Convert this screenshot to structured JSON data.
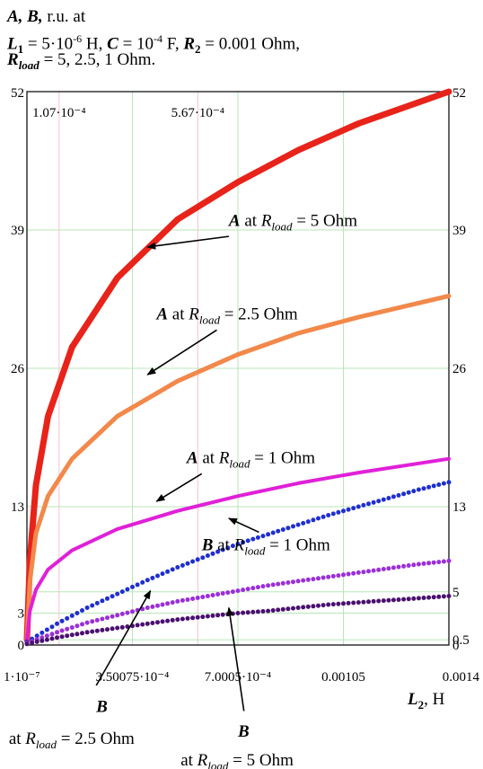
{
  "header": {
    "line1_vars": "A, B,",
    "line1_rest": "r.u.   at",
    "l1_label": "L",
    "l1_sub": "1",
    "l1_value": "= 5·10",
    "l1_exp": "-6",
    "l1_unit": "H,",
    "c_label": "C",
    "c_value": "= 10",
    "c_exp": "-4",
    "c_unit": "F,",
    "r2_label": "R",
    "r2_sub": "2",
    "r2_value": "= 0.001 Ohm,",
    "rload_label": "R",
    "rload_sub": "load",
    "rload_value": "= 5, 2.5, 1 Ohm."
  },
  "chart_data": {
    "type": "line",
    "xlabel_var": "L",
    "xlabel_sub": "2",
    "xlabel_unit": ", H",
    "xlim": [
      1e-07,
      0.0014
    ],
    "ylim": [
      0,
      52
    ],
    "grid": true,
    "x_tick_values": [
      1e-07,
      0.00035,
      0.0007,
      0.00105,
      0.0014
    ],
    "x_tick_labels": [
      "1·10⁻⁷",
      "3.50075·10⁻⁴",
      "7.0005·10⁻⁴",
      "0.00105",
      "0.0014"
    ],
    "top_markers": [
      {
        "value": 0.000107,
        "label": "1.07·10⁻⁴"
      },
      {
        "value": 0.000567,
        "label": "5.67·10⁻⁴"
      }
    ],
    "y_ticks_left": [
      0,
      3,
      13,
      26,
      39,
      52
    ],
    "y_ticks_right": [
      0,
      0.5,
      5,
      13,
      26,
      39,
      52
    ],
    "series": [
      {
        "style": "solid",
        "color": "#e8231a",
        "width": 7,
        "x": [
          1e-07,
          1e-05,
          3e-05,
          7e-05,
          0.00015,
          0.0003,
          0.0005,
          0.0007,
          0.0009,
          0.0011,
          0.0014
        ],
        "y": [
          0.5,
          8,
          15,
          21.5,
          28,
          34.5,
          40,
          43.5,
          46.5,
          49,
          52
        ]
      },
      {
        "style": "solid",
        "color": "#f2884a",
        "width": 5,
        "x": [
          1e-07,
          1e-05,
          3e-05,
          7e-05,
          0.00015,
          0.0003,
          0.0005,
          0.0007,
          0.0009,
          0.0011,
          0.0014
        ],
        "y": [
          0.5,
          6,
          10.5,
          14,
          17.5,
          21.5,
          24.8,
          27.3,
          29.3,
          30.8,
          32.8
        ]
      },
      {
        "style": "solid",
        "color": "#e020d8",
        "width": 4,
        "x": [
          1e-07,
          1e-05,
          3e-05,
          7e-05,
          0.00015,
          0.0003,
          0.0005,
          0.0007,
          0.0009,
          0.0011,
          0.0014
        ],
        "y": [
          0.5,
          3.2,
          5.2,
          7.1,
          8.9,
          10.9,
          12.6,
          14,
          15.2,
          16.2,
          17.5
        ]
      },
      {
        "style": "dotted",
        "color": "#1f2fd0",
        "width": 5,
        "x": [
          1e-07,
          0.0001,
          0.0002,
          0.0003,
          0.0004,
          0.0005,
          0.0006,
          0.0007,
          0.0008,
          0.0009,
          0.001,
          0.0011,
          0.0012,
          0.0013,
          0.0014
        ],
        "y": [
          0.3,
          2,
          3.5,
          4.8,
          6.1,
          7.3,
          8.4,
          9.5,
          10.4,
          11.3,
          12.2,
          13,
          13.8,
          14.6,
          15.3
        ]
      },
      {
        "style": "dotted",
        "color": "#9b2fd8",
        "width": 5,
        "x": [
          1e-07,
          0.0001,
          0.0002,
          0.0003,
          0.0004,
          0.0005,
          0.0006,
          0.0007,
          0.0008,
          0.0009,
          0.001,
          0.0011,
          0.0012,
          0.0013,
          0.0014
        ],
        "y": [
          0.2,
          1.2,
          2.1,
          2.8,
          3.5,
          4.1,
          4.6,
          5.1,
          5.6,
          6,
          6.4,
          6.8,
          7.2,
          7.6,
          7.9
        ]
      },
      {
        "style": "dotted",
        "color": "#4a1070",
        "width": 5,
        "x": [
          1e-07,
          0.0001,
          0.0002,
          0.0003,
          0.0004,
          0.0005,
          0.0006,
          0.0007,
          0.0008,
          0.0009,
          0.001,
          0.0011,
          0.0012,
          0.0013,
          0.0014
        ],
        "y": [
          0.1,
          0.7,
          1.2,
          1.6,
          2,
          2.4,
          2.7,
          3,
          3.2,
          3.5,
          3.8,
          4,
          4.2,
          4.4,
          4.6
        ]
      }
    ],
    "annotations": [
      {
        "prefix": "A",
        "mid": "at",
        "r": "R",
        "sub": "load",
        "suffix": "= 5 Ohm",
        "tx": 0.00067,
        "ty": 39.4,
        "ax1": 0.00067,
        "ay1": 38.4,
        "ax2": 0.0004,
        "ay2": 37.4
      },
      {
        "prefix": "A",
        "mid": "at",
        "r": "R",
        "sub": "load",
        "suffix": "= 2.5 Ohm",
        "tx": 0.00043,
        "ty": 30.6,
        "ax1": 0.00063,
        "ay1": 29.6,
        "ax2": 0.0004,
        "ay2": 25.4
      },
      {
        "prefix": "A",
        "mid": "at",
        "r": "R",
        "sub": "load",
        "suffix": "= 1 Ohm",
        "tx": 0.00053,
        "ty": 17.1,
        "ax1": 0.00058,
        "ay1": 16.1,
        "ax2": 0.00043,
        "ay2": 13.5
      },
      {
        "prefix": "B",
        "mid": "at",
        "r": "R",
        "sub": "load",
        "suffix": "= 1 Ohm",
        "tx": 0.00058,
        "ty": 8.9,
        "ax1": 0.00077,
        "ay1": 10.6,
        "ax2": 0.00067,
        "ay2": 11.9
      },
      {
        "prefix": "B",
        "mid": "",
        "r": "",
        "sub": "",
        "suffix": "",
        "tx": 0.00023,
        "ty": -6.3,
        "ax1": 0.00023,
        "ay1": -3.8,
        "ax2": 0.00041,
        "ay2": 5.1
      },
      {
        "prefix": "at",
        "mid": "",
        "r": "R",
        "sub": "load",
        "suffix": "= 2.5 Ohm",
        "plain": true,
        "tx": -6e-05,
        "ty": -9.3
      },
      {
        "prefix": "B",
        "mid": "",
        "r": "",
        "sub": "",
        "suffix": "",
        "tx": 0.0007,
        "ty": -8.6,
        "ax1": 0.00072,
        "ay1": -6.2,
        "ax2": 0.00067,
        "ay2": 3.5
      },
      {
        "prefix": "at",
        "mid": "",
        "r": "R",
        "sub": "load",
        "suffix": "= 5 Ohm",
        "plain": true,
        "tx": 0.00051,
        "ty": -11.3
      }
    ]
  }
}
